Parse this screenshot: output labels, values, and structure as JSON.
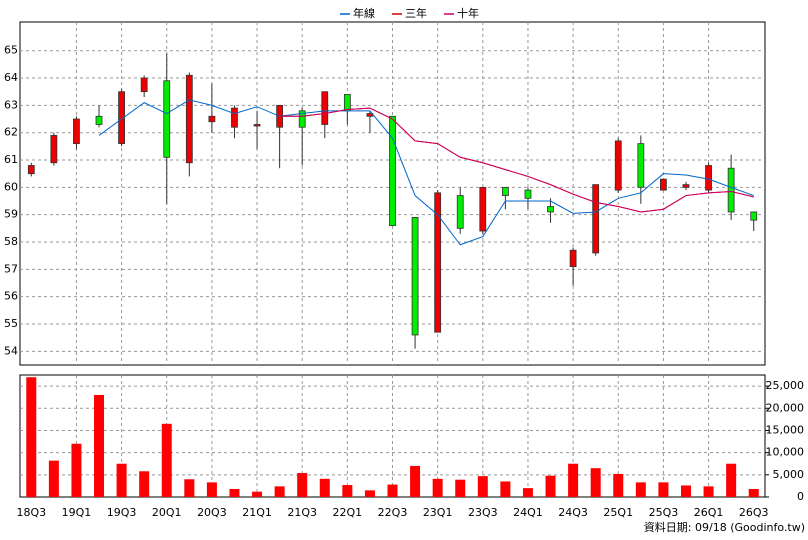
{
  "chart_data": [
    {
      "type": "candlestick",
      "categories": [
        "18Q3",
        null,
        "19Q1",
        null,
        "19Q3",
        null,
        "20Q1",
        null,
        "20Q3",
        null,
        "21Q1",
        null,
        "21Q3",
        null,
        "22Q1",
        null,
        "22Q3",
        null,
        "23Q1",
        null,
        "23Q3",
        null,
        "24Q1",
        null,
        "24Q3",
        null,
        "25Q1",
        null,
        "25Q3",
        null,
        "26Q1",
        null,
        "26Q3"
      ],
      "open": [
        60.5,
        60.9,
        61.6,
        62.6,
        61.6,
        63.5,
        63.9,
        60.9,
        62.4,
        62.2,
        62.25,
        62.2,
        62.8,
        62.3,
        63.4,
        62.6,
        62.6,
        58.9,
        54.7,
        59.7,
        58.4,
        60.0,
        59.9,
        59.3,
        57.1,
        57.6,
        59.9,
        61.6,
        59.9,
        60.0,
        59.9,
        60.7,
        59.1
      ],
      "high": [
        60.9,
        62.0,
        62.6,
        63.0,
        63.6,
        64.1,
        64.9,
        64.2,
        63.8,
        63.0,
        62.8,
        63.0,
        62.9,
        63.5,
        63.4,
        62.8,
        62.6,
        58.9,
        59.9,
        60.0,
        60.0,
        60.0,
        60.0,
        59.6,
        57.8,
        60.1,
        61.8,
        61.9,
        60.3,
        60.2,
        60.9,
        61.2,
        59.1
      ],
      "low": [
        60.4,
        60.8,
        61.4,
        62.2,
        61.5,
        63.3,
        59.4,
        60.4,
        62.0,
        61.8,
        61.4,
        60.7,
        60.8,
        61.8,
        62.3,
        62.0,
        58.6,
        54.1,
        54.7,
        58.3,
        58.3,
        59.2,
        59.2,
        58.7,
        56.4,
        57.5,
        59.8,
        59.4,
        59.9,
        59.9,
        59.8,
        58.8,
        58.4
      ],
      "close": [
        60.8,
        61.9,
        62.5,
        62.3,
        63.5,
        64.0,
        61.1,
        64.1,
        62.6,
        62.9,
        62.3,
        63.0,
        62.2,
        63.5,
        62.8,
        62.7,
        58.6,
        54.6,
        59.8,
        58.5,
        60.0,
        59.7,
        59.6,
        59.1,
        57.7,
        60.1,
        61.7,
        60.0,
        60.3,
        60.1,
        60.8,
        59.1,
        58.8
      ],
      "up_color": "#ee0000",
      "down_color": "#00ee00",
      "series": [
        {
          "name": "年線",
          "color": "#0066cc",
          "values": [
            null,
            null,
            null,
            61.9,
            62.5,
            63.1,
            62.7,
            63.2,
            63.0,
            62.7,
            62.95,
            62.6,
            62.7,
            62.8,
            62.8,
            62.8,
            61.8,
            59.7,
            59.0,
            57.9,
            58.2,
            59.5,
            59.5,
            59.5,
            59.05,
            59.1,
            59.6,
            59.8,
            60.5,
            60.45,
            60.3,
            60.0,
            59.7
          ]
        },
        {
          "name": "三年",
          "color": "#cc0000",
          "values": [
            null,
            null,
            null,
            null,
            null,
            null,
            null,
            null,
            null,
            null,
            null,
            62.6,
            62.6,
            62.7,
            62.85,
            62.9,
            62.5,
            61.7,
            61.6,
            61.1,
            60.9,
            60.65,
            60.4,
            60.1,
            59.75,
            59.45,
            59.3,
            59.1,
            59.2,
            59.7,
            59.8,
            59.85,
            59.65
          ]
        },
        {
          "name": "十年",
          "color": "#cc0066",
          "values": [
            null,
            null,
            null,
            null,
            null,
            null,
            null,
            null,
            null,
            null,
            null,
            62.6,
            62.6,
            62.7,
            62.85,
            62.9,
            62.5,
            61.7,
            61.6,
            61.1,
            60.9,
            60.65,
            60.4,
            60.1,
            59.75,
            59.45,
            59.3,
            59.1,
            59.2,
            59.7,
            59.8,
            59.85,
            59.65
          ]
        }
      ],
      "ylim": [
        53.5,
        66.05
      ],
      "yticks": [
        54,
        55,
        56,
        57,
        58,
        59,
        60,
        61,
        62,
        63,
        64,
        65
      ],
      "grid": true
    },
    {
      "type": "bar",
      "values": [
        27000,
        8200,
        12000,
        23000,
        7500,
        5800,
        16500,
        4000,
        3300,
        1800,
        1200,
        2400,
        5400,
        4100,
        2700,
        1500,
        2800,
        7000,
        4100,
        3900,
        4700,
        3500,
        2000,
        4800,
        7500,
        6500,
        5200,
        3300,
        3300,
        2600,
        2400,
        7500,
        1800
      ],
      "color": "#ff0000",
      "ylim": [
        0,
        27500
      ],
      "yticks": [
        0,
        {
          "value": 5000,
          "label": "5,000"
        },
        {
          "value": 10000,
          "label": "10,000"
        },
        {
          "value": 15000,
          "label": "15,000"
        },
        {
          "value": 20000,
          "label": "20,000"
        },
        {
          "value": 25000,
          "label": "25,000"
        }
      ],
      "grid": true,
      "source": "資料日期: 09/18 (Goodinfo.tw)"
    }
  ]
}
